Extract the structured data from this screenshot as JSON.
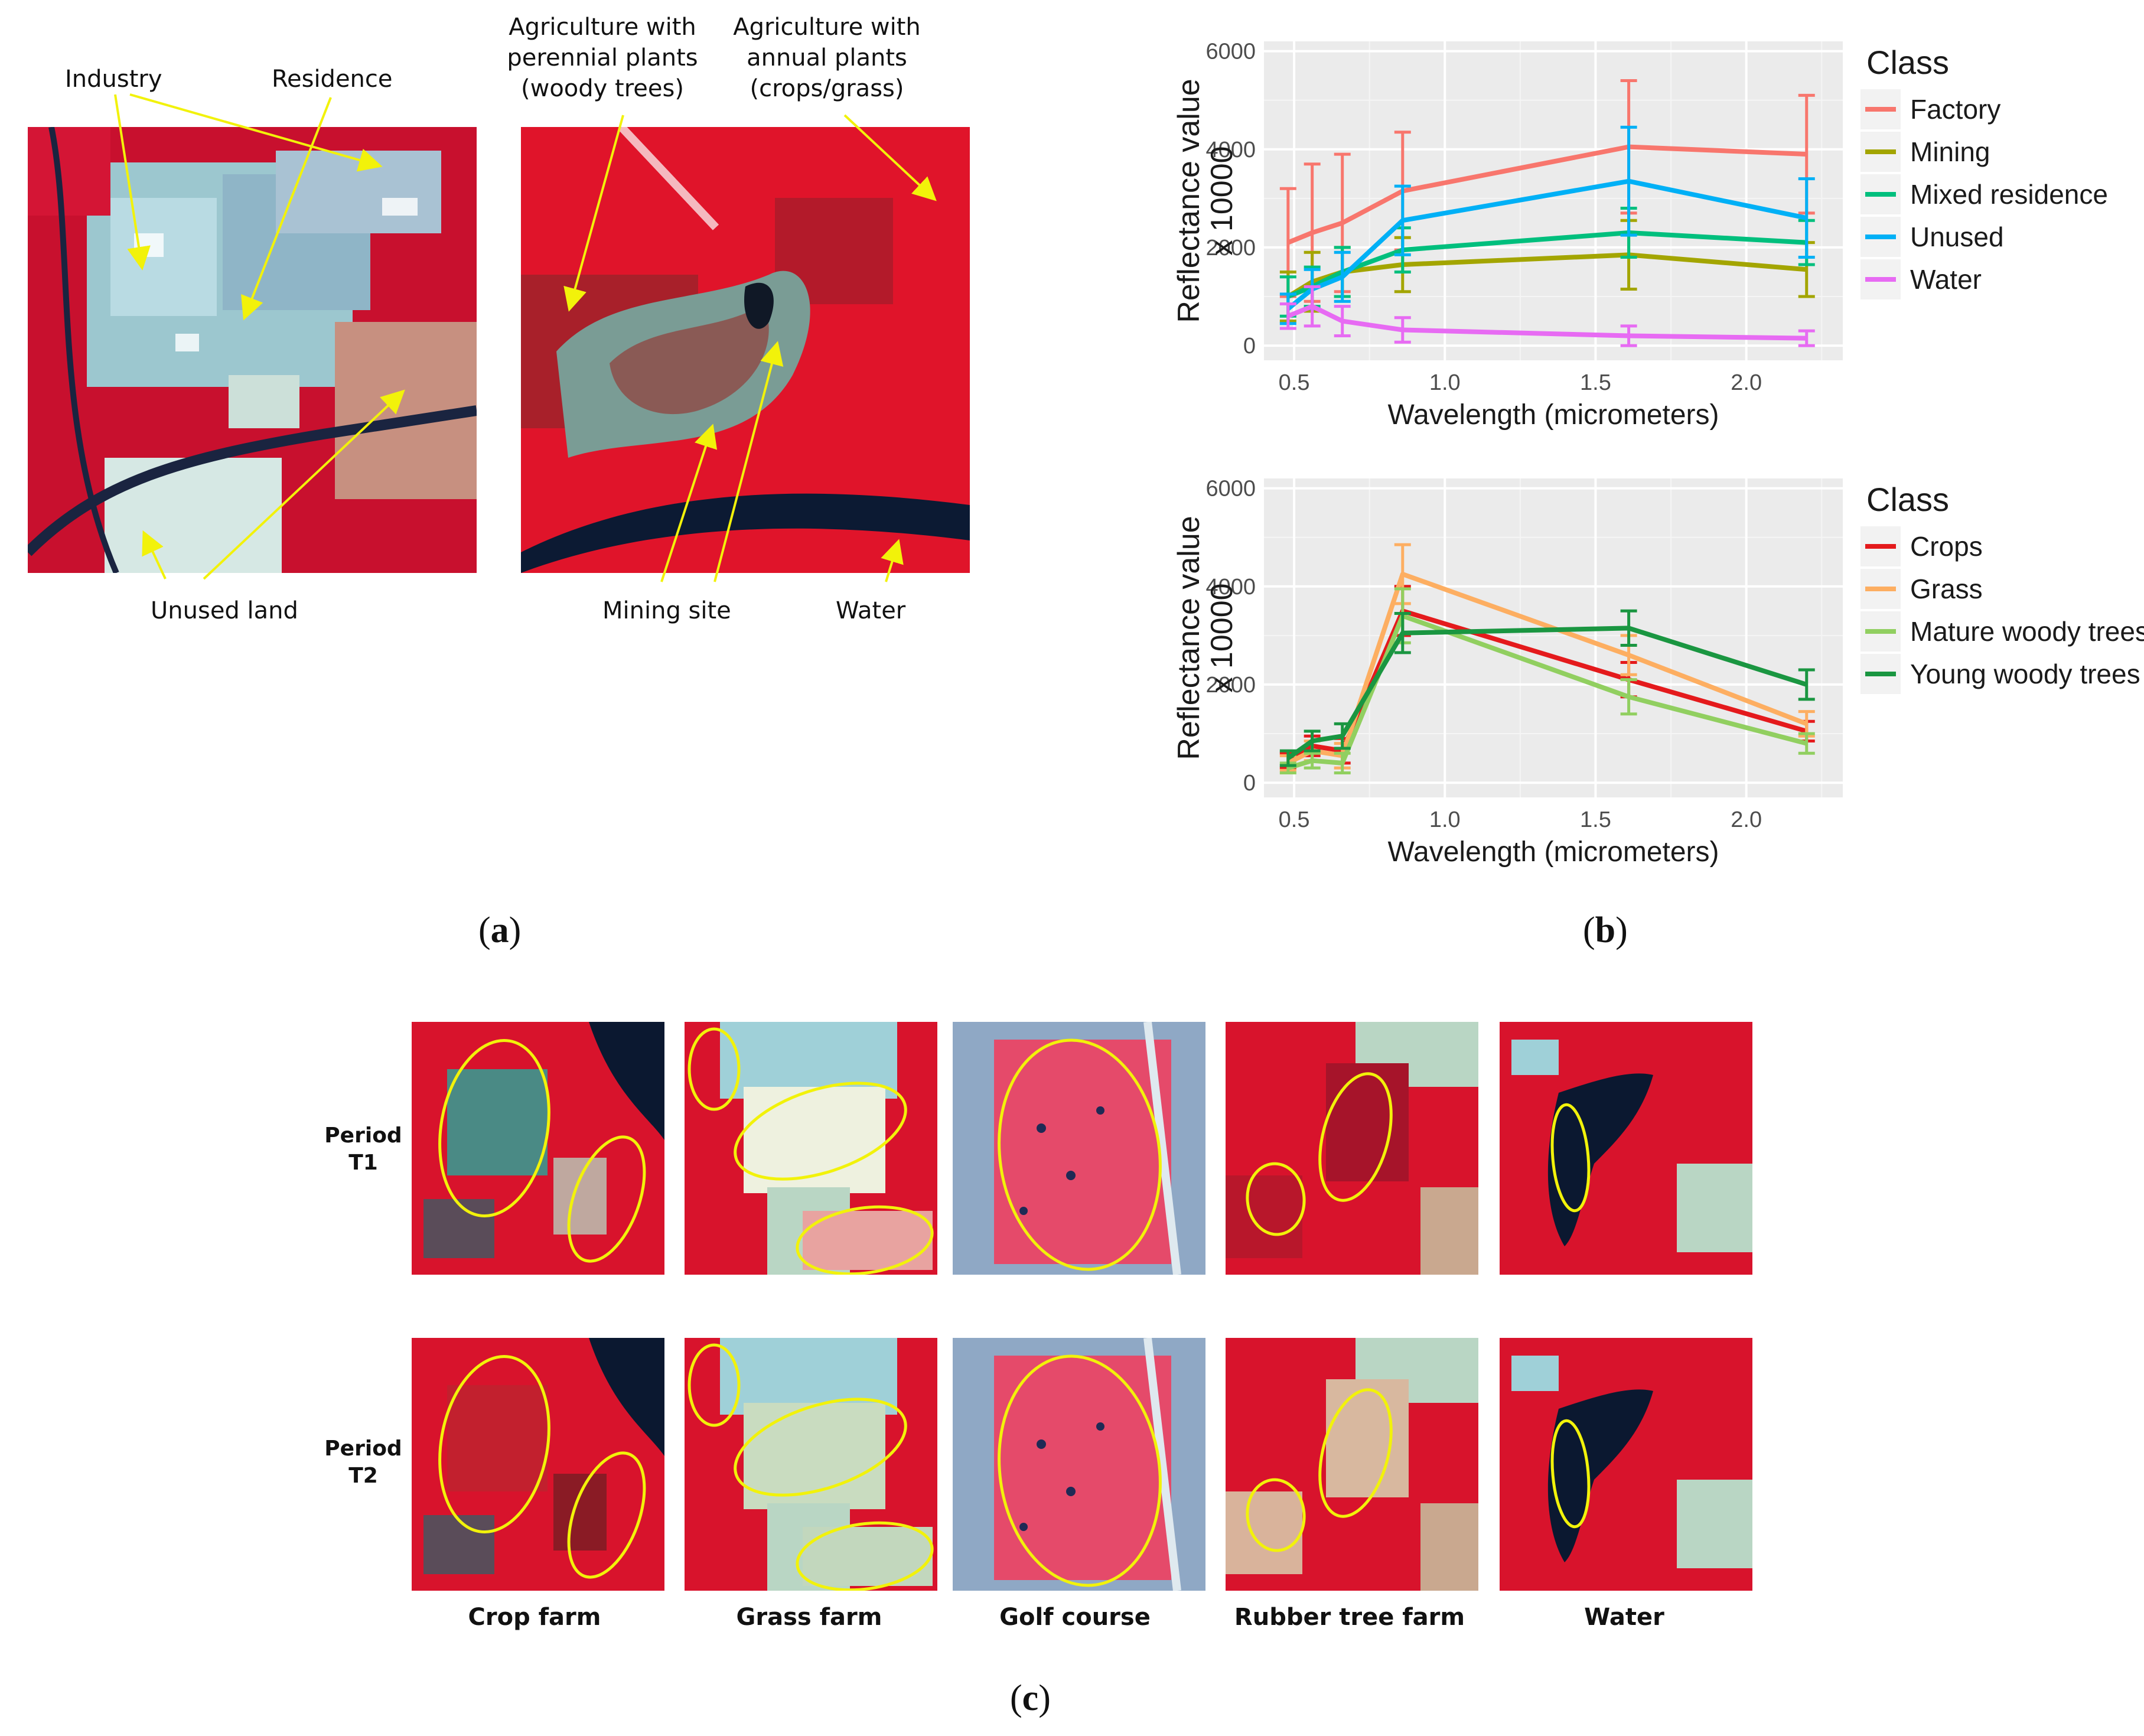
{
  "figure": {
    "panel_a": {
      "label_open": "(",
      "letter": "a",
      "label_close": ")",
      "annotations": {
        "industry": "Industry",
        "residence": "Residence",
        "unused_land": "Unused land",
        "agri_perennial": [
          "Agriculture with",
          "perennial plants",
          "(woody trees)"
        ],
        "agri_annual": [
          "Agriculture with",
          "annual plants",
          "(crops/grass)"
        ],
        "mining_site": "Mining site",
        "water": "Water"
      }
    },
    "panel_b": {
      "label_open": "(",
      "letter": "b",
      "label_close": ")"
    },
    "panel_c": {
      "label_open": "(",
      "letter": "c",
      "label_close": ")",
      "rows": [
        [
          "Period",
          "T1"
        ],
        [
          "Period",
          "T2"
        ]
      ],
      "columns": [
        "Crop farm",
        "Grass farm",
        "Golf course",
        "Rubber tree farm",
        "Water"
      ]
    }
  },
  "colors": {
    "annotation_arrow": "#f2f20a",
    "ellipse": "#f2f20a",
    "veg": "#e0142a",
    "urban": "#8fc8cf",
    "water": "#0c1a33"
  },
  "chart_data": [
    {
      "type": "line",
      "ylabel": [
        "Reflectance value",
        "x 10000"
      ],
      "xlabel": "Wavelength (micrometers)",
      "xlim": [
        0.4,
        2.32
      ],
      "ylim": [
        -300,
        6200
      ],
      "xticks": [
        0.5,
        1.0,
        1.5,
        2.0
      ],
      "xtick_labels": [
        "0.5",
        "1.0",
        "1.5",
        "2.0"
      ],
      "yticks": [
        0,
        2000,
        4000,
        6000
      ],
      "ytick_labels": [
        "0",
        "2000",
        "4000",
        "6000"
      ],
      "x": [
        0.48,
        0.56,
        0.66,
        0.86,
        1.61,
        2.2
      ],
      "legend_title": "Class",
      "series": [
        {
          "name": "Factory",
          "color": "#f8766d",
          "values": [
            2100,
            2300,
            2500,
            3150,
            4050,
            3900
          ],
          "err": [
            1100,
            1400,
            1400,
            1200,
            1350,
            1200
          ]
        },
        {
          "name": "Mining",
          "color": "#a3a500",
          "values": [
            1000,
            1300,
            1500,
            1650,
            1850,
            1550
          ],
          "err": [
            500,
            600,
            500,
            550,
            700,
            550
          ]
        },
        {
          "name": "Mixed residence",
          "color": "#00bf7d",
          "values": [
            1000,
            1200,
            1500,
            1950,
            2300,
            2100
          ],
          "err": [
            400,
            400,
            500,
            450,
            500,
            450
          ]
        },
        {
          "name": "Unused",
          "color": "#00b0f6",
          "values": [
            750,
            1150,
            1400,
            2550,
            3350,
            2600
          ],
          "err": [
            300,
            400,
            500,
            700,
            1100,
            800
          ]
        },
        {
          "name": "Water",
          "color": "#e76bf3",
          "values": [
            600,
            800,
            500,
            320,
            200,
            150
          ],
          "err": [
            250,
            400,
            300,
            250,
            200,
            150
          ]
        }
      ]
    },
    {
      "type": "line",
      "ylabel": [
        "Reflectance value",
        "x 10000"
      ],
      "xlabel": "Wavelength (micrometers)",
      "xlim": [
        0.4,
        2.32
      ],
      "ylim": [
        -300,
        6200
      ],
      "xticks": [
        0.5,
        1.0,
        1.5,
        2.0
      ],
      "xtick_labels": [
        "0.5",
        "1.0",
        "1.5",
        "2.0"
      ],
      "yticks": [
        0,
        2000,
        4000,
        6000
      ],
      "ytick_labels": [
        "0",
        "2000",
        "4000",
        "6000"
      ],
      "x": [
        0.48,
        0.56,
        0.66,
        0.86,
        1.61,
        2.2
      ],
      "legend_title": "Class",
      "series": [
        {
          "name": "Crops",
          "color": "#e41a1c",
          "values": [
            450,
            750,
            650,
            3500,
            2100,
            1050
          ],
          "err": [
            150,
            200,
            250,
            500,
            350,
            200
          ]
        },
        {
          "name": "Grass",
          "color": "#fdae61",
          "values": [
            400,
            650,
            550,
            4250,
            2600,
            1200
          ],
          "err": [
            150,
            200,
            250,
            600,
            400,
            250
          ]
        },
        {
          "name": "Mature woody trees",
          "color": "#91cf60",
          "values": [
            300,
            450,
            400,
            3400,
            1750,
            800
          ],
          "err": [
            100,
            150,
            200,
            550,
            350,
            200
          ]
        },
        {
          "name": "Young woody trees",
          "color": "#1a9641",
          "values": [
            500,
            850,
            950,
            3050,
            3150,
            2000
          ],
          "err": [
            150,
            200,
            250,
            400,
            350,
            300
          ]
        }
      ]
    }
  ]
}
